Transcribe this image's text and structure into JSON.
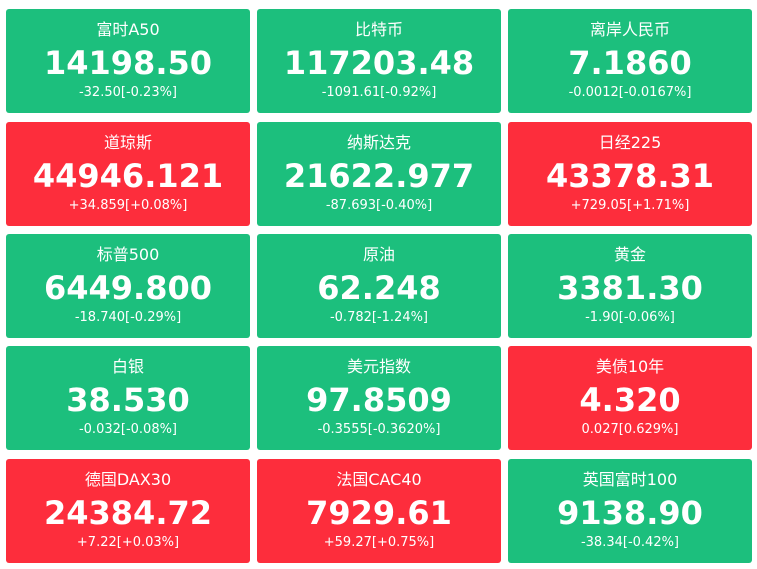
{
  "colors": {
    "up": "#fd2d3c",
    "down": "#1cbf7d",
    "text": "#ffffff"
  },
  "tiles": [
    {
      "name": "富时A50",
      "price": "14198.50",
      "change": "-32.50[-0.23%]",
      "direction": "down"
    },
    {
      "name": "比特币",
      "price": "117203.48",
      "change": "-1091.61[-0.92%]",
      "direction": "down"
    },
    {
      "name": "离岸人民币",
      "price": "7.1860",
      "change": "-0.0012[-0.0167%]",
      "direction": "down"
    },
    {
      "name": "道琼斯",
      "price": "44946.121",
      "change": "+34.859[+0.08%]",
      "direction": "up"
    },
    {
      "name": "纳斯达克",
      "price": "21622.977",
      "change": "-87.693[-0.40%]",
      "direction": "down"
    },
    {
      "name": "日经225",
      "price": "43378.31",
      "change": "+729.05[+1.71%]",
      "direction": "up"
    },
    {
      "name": "标普500",
      "price": "6449.800",
      "change": "-18.740[-0.29%]",
      "direction": "down"
    },
    {
      "name": "原油",
      "price": "62.248",
      "change": "-0.782[-1.24%]",
      "direction": "down"
    },
    {
      "name": "黄金",
      "price": "3381.30",
      "change": "-1.90[-0.06%]",
      "direction": "down"
    },
    {
      "name": "白银",
      "price": "38.530",
      "change": "-0.032[-0.08%]",
      "direction": "down"
    },
    {
      "name": "美元指数",
      "price": "97.8509",
      "change": "-0.3555[-0.3620%]",
      "direction": "down"
    },
    {
      "name": "美债10年",
      "price": "4.320",
      "change": "0.027[0.629%]",
      "direction": "up"
    },
    {
      "name": "德国DAX30",
      "price": "24384.72",
      "change": "+7.22[+0.03%]",
      "direction": "up"
    },
    {
      "name": "法国CAC40",
      "price": "7929.61",
      "change": "+59.27[+0.75%]",
      "direction": "up"
    },
    {
      "name": "英国富时100",
      "price": "9138.90",
      "change": "-38.34[-0.42%]",
      "direction": "down"
    }
  ]
}
